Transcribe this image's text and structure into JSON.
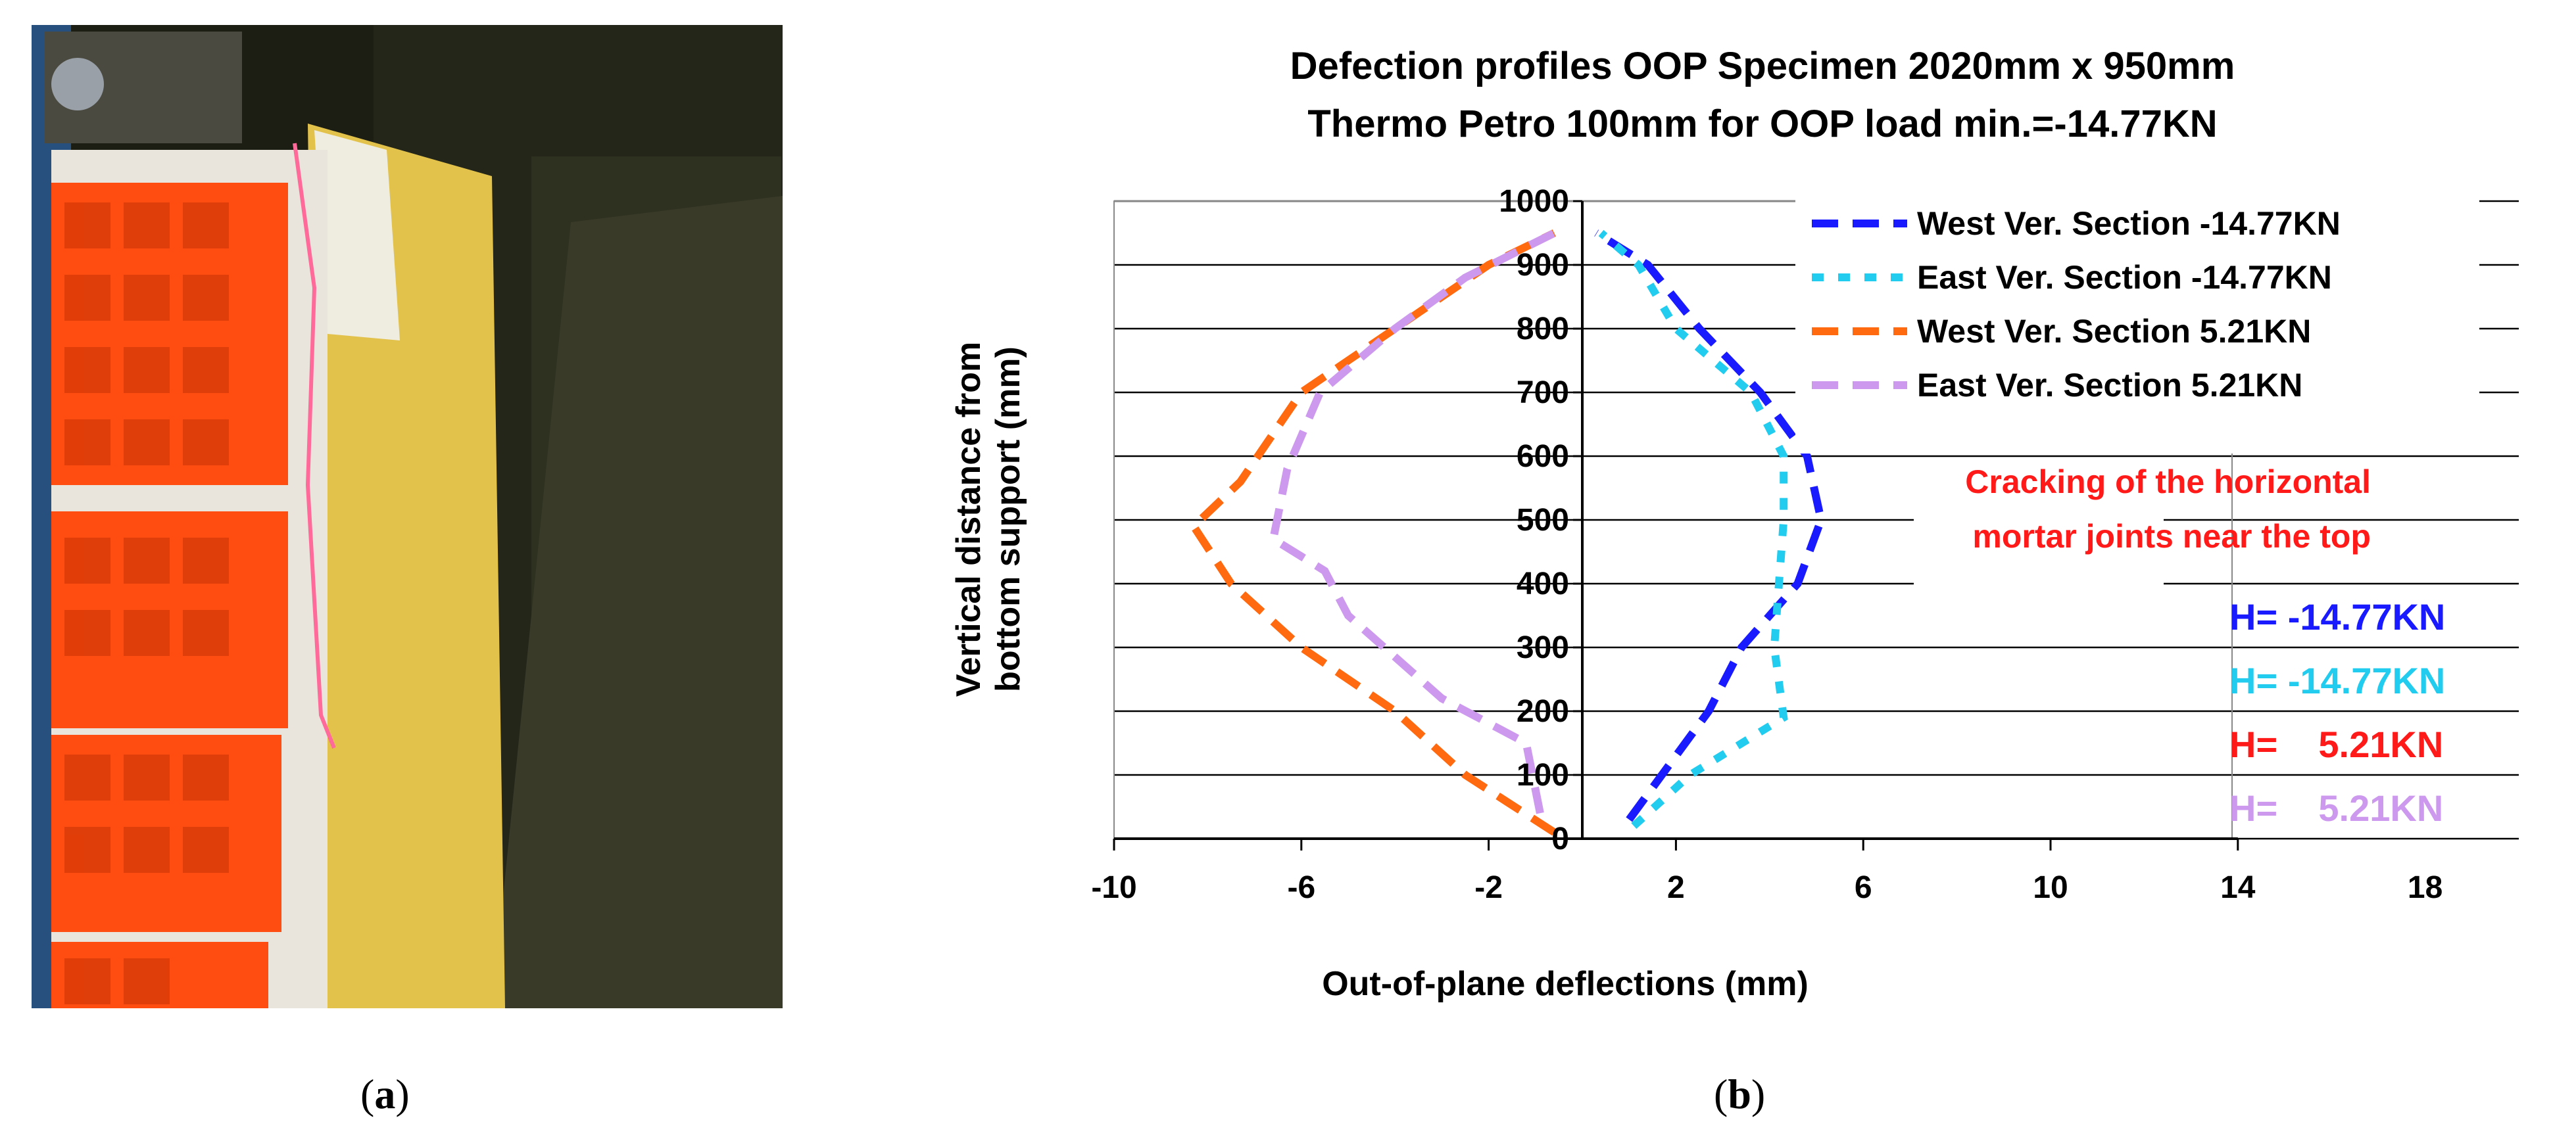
{
  "captions": {
    "a": "a",
    "b": "b"
  },
  "photo": {
    "description_icon": "masonry-wall-photo-icon",
    "colors": {
      "background": "#1a1c12",
      "brick": "#ff4a10",
      "mortar": "#e8e4dc",
      "insulation": "#e8c64a",
      "steel": "#2a5a9a"
    }
  },
  "chart_data": {
    "type": "line",
    "title": [
      "Defection profiles OOP Specimen 2020mm x 950mm",
      "Thermo Petro 100mm for OOP load min.=-14.77KN"
    ],
    "xlabel": "Out-of-plane deflections (mm)",
    "ylabel": [
      "Vertical distance from",
      "bottom support (mm)"
    ],
    "xlim": [
      -10,
      20
    ],
    "ylim": [
      0,
      1000
    ],
    "xticks": [
      -10,
      -6,
      -2,
      2,
      6,
      10,
      14,
      18
    ],
    "yticks": [
      0,
      100,
      200,
      300,
      400,
      500,
      600,
      700,
      800,
      900,
      1000
    ],
    "grid": "horizontal",
    "legend_position": "top-right",
    "series": [
      {
        "name": "West Ver. Section -14.77KN",
        "color": "#1a1aff",
        "dash": "dash",
        "points": [
          [
            1.0,
            30
          ],
          [
            1.7,
            100
          ],
          [
            2.7,
            200
          ],
          [
            3.4,
            300
          ],
          [
            4.6,
            400
          ],
          [
            5.1,
            500
          ],
          [
            4.8,
            600
          ],
          [
            3.8,
            700
          ],
          [
            2.5,
            800
          ],
          [
            1.4,
            900
          ],
          [
            0.3,
            950
          ]
        ]
      },
      {
        "name": "East Ver. Section -14.77KN",
        "color": "#22ccee",
        "dash": "dot",
        "points": [
          [
            1.1,
            20
          ],
          [
            2.3,
            100
          ],
          [
            4.3,
            190
          ],
          [
            4.1,
            300
          ],
          [
            4.2,
            400
          ],
          [
            4.3,
            500
          ],
          [
            4.3,
            600
          ],
          [
            3.6,
            700
          ],
          [
            2.0,
            800
          ],
          [
            1.2,
            900
          ],
          [
            0.4,
            950
          ]
        ]
      },
      {
        "name": "West Ver. Section  5.21KN",
        "color": "#ff6a10",
        "dash": "dash",
        "points": [
          [
            -0.6,
            10
          ],
          [
            -2.5,
            100
          ],
          [
            -4.0,
            200
          ],
          [
            -6.0,
            300
          ],
          [
            -7.5,
            400
          ],
          [
            -8.3,
            490
          ],
          [
            -7.3,
            560
          ],
          [
            -6.0,
            700
          ],
          [
            -4.0,
            800
          ],
          [
            -2.0,
            900
          ],
          [
            -0.6,
            950
          ]
        ]
      },
      {
        "name": "East Ver. Section  5.21KN",
        "color": "#cc99ee",
        "dash": "dash",
        "points": [
          [
            -0.9,
            40
          ],
          [
            -1.2,
            150
          ],
          [
            -3.0,
            220
          ],
          [
            -5.0,
            350
          ],
          [
            -5.5,
            420
          ],
          [
            -6.6,
            470
          ],
          [
            -6.3,
            580
          ],
          [
            -5.6,
            700
          ],
          [
            -4.0,
            800
          ],
          [
            -2.5,
            880
          ],
          [
            -0.6,
            950
          ]
        ]
      }
    ],
    "annotation": [
      "Cracking of the horizontal",
      "mortar joints near the top"
    ],
    "h_labels": [
      {
        "text": "H= -14.77KN",
        "color": "#1a1aff"
      },
      {
        "text": "H= -14.77KN",
        "color": "#22ccee"
      },
      {
        "text": "H=    5.21KN",
        "color": "#ff1a1a"
      },
      {
        "text": "H=    5.21KN",
        "color": "#cc99ee"
      }
    ]
  }
}
